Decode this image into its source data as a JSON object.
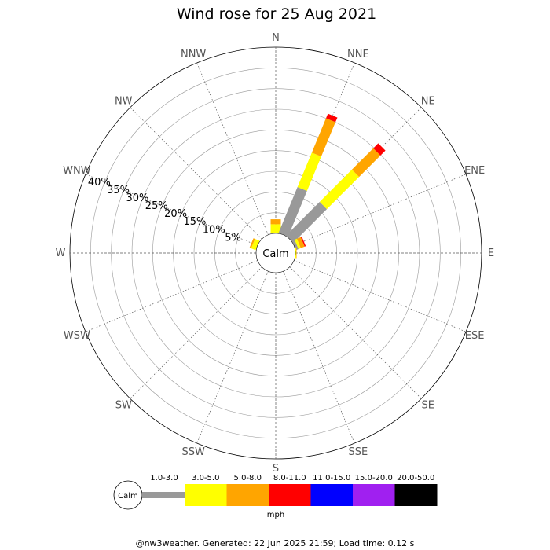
{
  "chart_data": {
    "type": "wind-rose",
    "title": "Wind rose for 25 Aug 2021",
    "directions": [
      "N",
      "NNE",
      "NE",
      "ENE",
      "E",
      "ESE",
      "SE",
      "SSE",
      "S",
      "SSW",
      "SW",
      "WSW",
      "W",
      "WNW",
      "NW",
      "NNW"
    ],
    "ring_labels": [
      "5%",
      "10%",
      "15%",
      "20%",
      "25%",
      "30%",
      "35%",
      "40%"
    ],
    "rings_percent": [
      5,
      10,
      15,
      20,
      25,
      30,
      35,
      40
    ],
    "rmax_percent": 45,
    "center_label": "Calm",
    "speed_bins": [
      {
        "label": "1.0-3.0",
        "color": "#999999"
      },
      {
        "label": "3.0-5.0",
        "color": "#ffff00"
      },
      {
        "label": "5.0-8.0",
        "color": "#ffa500"
      },
      {
        "label": "8.0-11.0",
        "color": "#ff0000"
      },
      {
        "label": "11.0-15.0",
        "color": "#0000ff"
      },
      {
        "label": "15.0-20.0",
        "color": "#a020f0"
      },
      {
        "label": "20.0-50.0",
        "color": "#000000"
      }
    ],
    "series": [
      {
        "name": "1.0-3.0",
        "values": [
          0.0,
          12.0,
          11.5,
          0.7,
          0.0,
          0,
          0,
          0,
          0,
          0,
          0,
          0,
          0,
          0.0,
          0,
          0
        ]
      },
      {
        "name": "3.0-5.0",
        "values": [
          2.2,
          9.0,
          11.0,
          0.6,
          0.2,
          0,
          0,
          0,
          0,
          0,
          0,
          0,
          0,
          1.2,
          0,
          0
        ]
      },
      {
        "name": "5.0-8.0",
        "values": [
          1.2,
          9.0,
          7.3,
          1.0,
          0.1,
          0,
          0,
          0,
          0,
          0,
          0,
          0,
          0,
          0.4,
          0,
          0
        ]
      },
      {
        "name": "8.0-11.0",
        "values": [
          0.0,
          1.2,
          1.7,
          0.3,
          0.0,
          0,
          0,
          0,
          0,
          0,
          0,
          0,
          0,
          0.0,
          0,
          0
        ]
      },
      {
        "name": "11.0-15.0",
        "values": [
          0,
          0,
          0,
          0,
          0,
          0,
          0,
          0,
          0,
          0,
          0,
          0,
          0,
          0,
          0,
          0
        ]
      },
      {
        "name": "15.0-20.0",
        "values": [
          0,
          0,
          0,
          0,
          0,
          0,
          0,
          0,
          0,
          0,
          0,
          0,
          0,
          0,
          0,
          0
        ]
      },
      {
        "name": "20.0-50.0",
        "values": [
          0,
          0,
          0,
          0,
          0,
          0,
          0,
          0,
          0,
          0,
          0,
          0,
          0,
          0,
          0,
          0
        ]
      }
    ],
    "unit_label": "mph"
  },
  "footer": "@nw3weather. Generated: 22 Jun 2025 21:59; Load time: 0.12 s"
}
